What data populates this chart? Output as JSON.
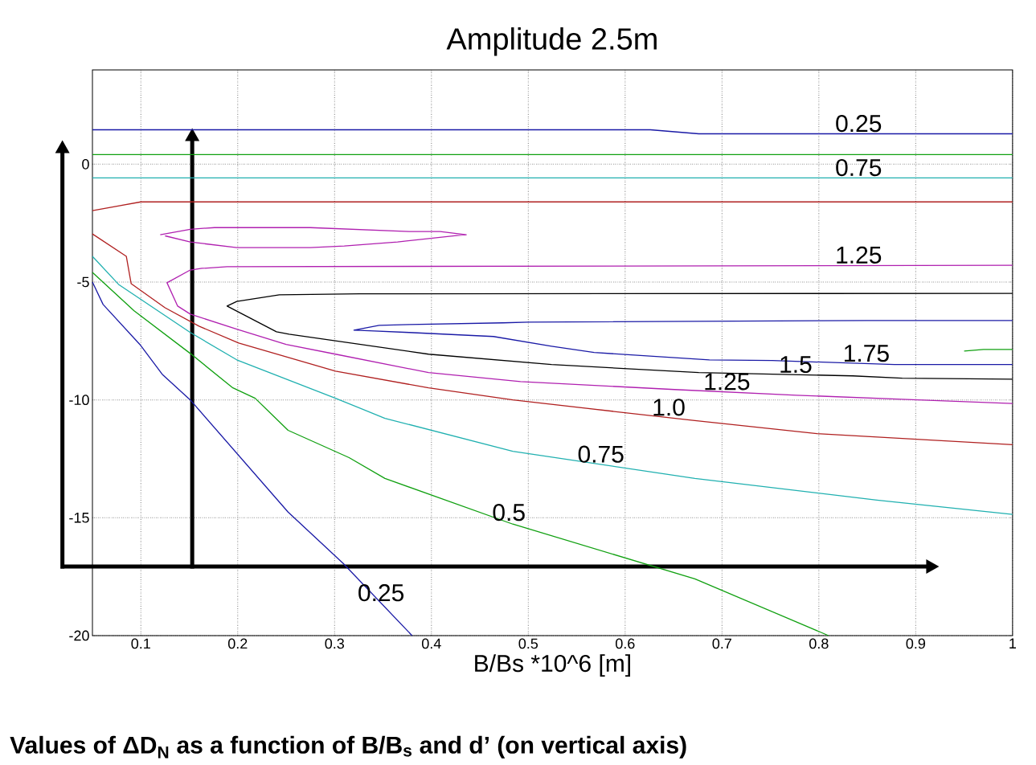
{
  "chart_data": {
    "type": "line",
    "title": "Amplitude 2.5m",
    "xlabel": "B/Bs  *10^6 [m]",
    "xlim": [
      0.05,
      1
    ],
    "ylim": [
      -20,
      4
    ],
    "xticks": [
      0.1,
      0.2,
      0.3,
      0.4,
      0.5,
      0.6,
      0.7,
      0.8,
      0.9,
      1
    ],
    "yticks": [
      -20,
      -15,
      -10,
      -5,
      0
    ],
    "grid": true,
    "line_style": "solid",
    "marker": "none",
    "series": [
      {
        "color": "#1a1aa6",
        "x": [
          0.05,
          0.626,
          0.676,
          1.0
        ],
        "values": [
          1.46,
          1.46,
          1.29,
          1.29
        ]
      },
      {
        "color": "#10a010",
        "x": [
          0.05,
          1.0
        ],
        "values": [
          0.41,
          0.41
        ]
      },
      {
        "color": "#20b0b0",
        "x": [
          0.05,
          1.0
        ],
        "values": [
          -0.58,
          -0.58
        ]
      },
      {
        "color": "#b02020",
        "x": [
          0.05,
          0.1,
          1.0
        ],
        "values": [
          -1.97,
          -1.6,
          -1.6
        ]
      },
      {
        "color": "#b020b0",
        "x": [
          0.12,
          0.151,
          0.176,
          0.275,
          0.377,
          0.409,
          0.436,
          0.426,
          0.365,
          0.31,
          0.275,
          0.199,
          0.151,
          0.125
        ],
        "values": [
          -2.99,
          -2.76,
          -2.69,
          -2.69,
          -2.86,
          -2.86,
          -2.99,
          -3.03,
          -3.3,
          -3.47,
          -3.54,
          -3.54,
          -3.3,
          -3.04
        ]
      },
      {
        "color": "#b020b0",
        "x": [
          1.0,
          0.189,
          0.163,
          0.151,
          0.127,
          0.138,
          0.151,
          0.199,
          0.25,
          0.301,
          0.397,
          0.492,
          0.651,
          0.777,
          0.886,
          1.0
        ],
        "values": [
          -4.29,
          -4.35,
          -4.42,
          -4.49,
          -5.03,
          -6.02,
          -6.36,
          -7.0,
          -7.65,
          -8.06,
          -8.84,
          -9.22,
          -9.56,
          -9.8,
          -9.97,
          -10.15
        ]
      },
      {
        "color": "#000000",
        "x": [
          1.0,
          0.326,
          0.243,
          0.199,
          0.189,
          0.24,
          0.253,
          0.397,
          0.524,
          0.676,
          0.835,
          0.886,
          1.0
        ],
        "values": [
          -5.48,
          -5.5,
          -5.54,
          -5.82,
          -6.02,
          -7.11,
          -7.21,
          -8.06,
          -8.5,
          -8.84,
          -8.98,
          -9.08,
          -9.12
        ]
      },
      {
        "color": "#1a1aa6",
        "x": [
          1.0,
          0.849,
          0.5,
          0.474,
          0.377,
          0.346,
          0.32,
          0.336,
          0.377,
          0.464,
          0.524,
          0.568,
          0.687,
          0.752,
          0.878,
          1.0
        ],
        "values": [
          -6.63,
          -6.63,
          -6.7,
          -6.73,
          -6.8,
          -6.84,
          -7.04,
          -7.07,
          -7.14,
          -7.31,
          -7.72,
          -7.99,
          -8.3,
          -8.33,
          -8.5,
          -8.5
        ]
      },
      {
        "color": "#10a010",
        "x": [
          0.95,
          0.97,
          1.0
        ],
        "values": [
          -7.93,
          -7.86,
          -7.86
        ]
      },
      {
        "color": "#b02020",
        "x": [
          0.05,
          0.085,
          0.09,
          0.125,
          0.16,
          0.201,
          0.301,
          0.397,
          0.484,
          0.672,
          0.798,
          1.0
        ],
        "values": [
          -2.96,
          -3.91,
          -5.07,
          -6.09,
          -6.87,
          -7.59,
          -8.78,
          -9.49,
          -10.0,
          -10.88,
          -11.43,
          -11.9
        ]
      },
      {
        "color": "#20b0b0",
        "x": [
          0.05,
          0.077,
          0.151,
          0.199,
          0.301,
          0.352,
          0.484,
          0.672,
          0.86,
          1.0
        ],
        "values": [
          -3.91,
          -5.1,
          -7.14,
          -8.3,
          -9.93,
          -10.78,
          -12.18,
          -13.33,
          -14.25,
          -14.86
        ]
      },
      {
        "color": "#10a010",
        "x": [
          0.05,
          0.093,
          0.151,
          0.195,
          0.218,
          0.252,
          0.315,
          0.352,
          0.484,
          0.672,
          0.81
        ],
        "values": [
          -4.59,
          -6.22,
          -8.03,
          -9.49,
          -9.93,
          -11.29,
          -12.45,
          -13.33,
          -15.27,
          -17.59,
          -20.0
        ]
      },
      {
        "color": "#1a1aa6",
        "x": [
          0.05,
          0.061,
          0.099,
          0.122,
          0.151,
          0.252,
          0.309,
          0.38
        ],
        "values": [
          -5.0,
          -5.95,
          -7.65,
          -8.91,
          -10.0,
          -14.76,
          -16.94,
          -20.0
        ]
      }
    ],
    "annotations": [
      {
        "text": "0.25",
        "x": 0.841,
        "y": 1.29
      },
      {
        "text": "0.75",
        "x": 0.841,
        "y": -0.58
      },
      {
        "text": "1.25",
        "x": 0.841,
        "y": -4.29
      },
      {
        "text": "1.75",
        "x": 0.849,
        "y": -8.46
      },
      {
        "text": "1.5",
        "x": 0.776,
        "y": -8.93
      },
      {
        "text": "1.25",
        "x": 0.705,
        "y": -9.66
      },
      {
        "text": "1.0",
        "x": 0.645,
        "y": -10.75
      },
      {
        "text": "0.75",
        "x": 0.575,
        "y": -12.74
      },
      {
        "text": "0.5",
        "x": 0.48,
        "y": -15.21
      },
      {
        "text": "0.25",
        "x": 0.348,
        "y": -18.62
      },
      "Values of ΔD$_{N}$ as a function of B/B$_{s}$ and d’ (on vertical axis)"
    ]
  }
}
